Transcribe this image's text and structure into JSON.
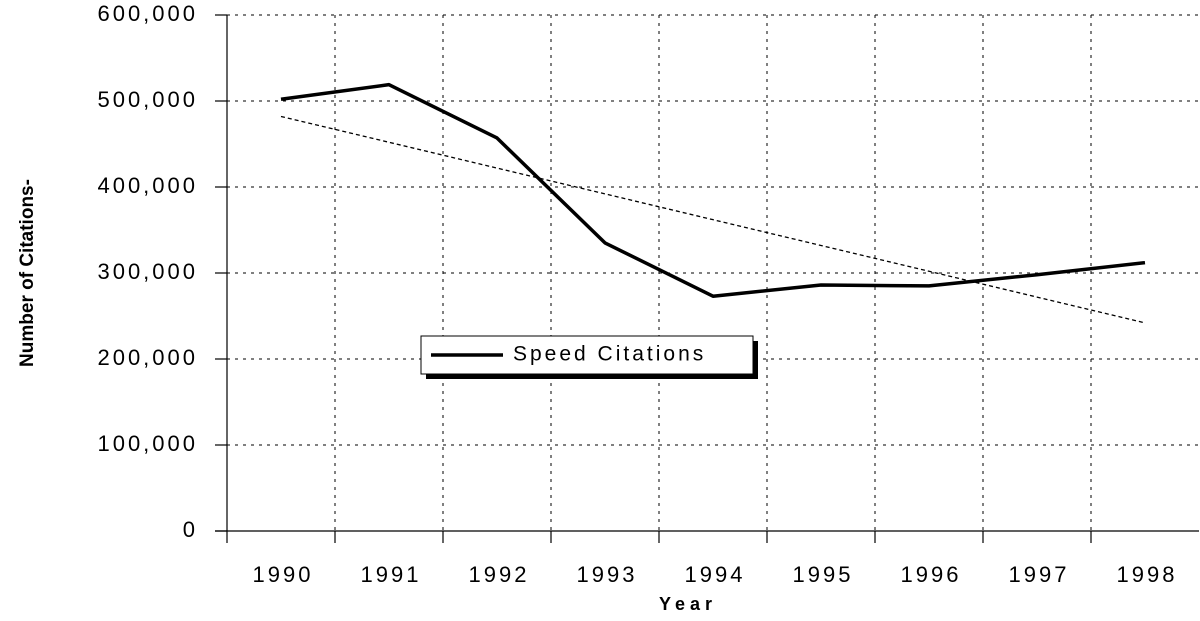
{
  "chart_data": {
    "type": "line",
    "x_label": "Year",
    "y_label": "Number of Citations-",
    "categories": [
      "1990",
      "1991",
      "1992",
      "1993",
      "1994",
      "1995",
      "1996",
      "1997",
      "1998"
    ],
    "series": [
      {
        "name": "Speed Citations",
        "color": "#000000",
        "values": [
          502000,
          519000,
          457000,
          335000,
          273000,
          286000,
          285000,
          298000,
          312000
        ]
      }
    ],
    "trendline": {
      "color": "#000000",
      "dashed": true,
      "values": [
        482000,
        452000,
        422000,
        392000,
        362000,
        332000,
        302000,
        272000,
        242000
      ]
    },
    "ylim": [
      0,
      600000
    ],
    "yticks": [
      0,
      {
        "value": 100000,
        "label": "100,000"
      },
      {
        "value": 200000,
        "label": "200,000"
      },
      {
        "value": 300000,
        "label": "300,000"
      },
      {
        "value": 400000,
        "label": "400,000"
      },
      {
        "value": 500000,
        "label": "500,000"
      },
      {
        "value": 600000,
        "label": "600,000"
      }
    ],
    "grid": true,
    "legend": "center"
  }
}
